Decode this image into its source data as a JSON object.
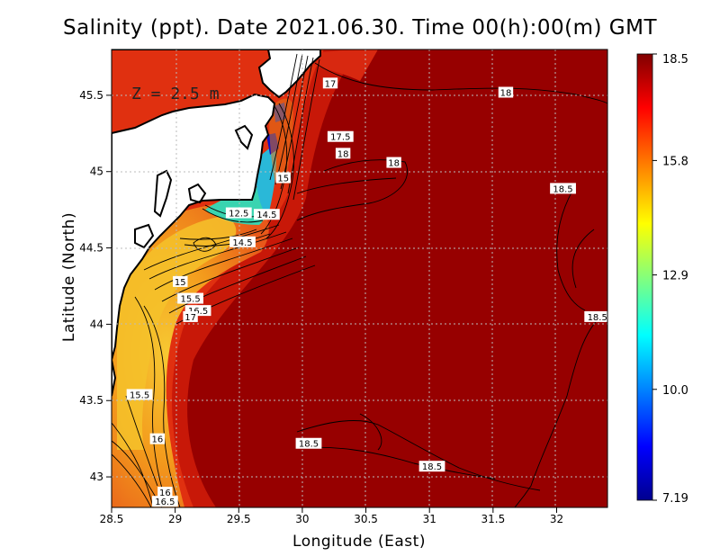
{
  "title": "Salinity (ppt). Date 2021.06.30. Time 00(h):00(m) GMT",
  "depth_label": "Z = 2.5 m",
  "chart_data": {
    "type": "heatmap",
    "variable": "Salinity",
    "units": "ppt",
    "xlabel": "Longitude (East)",
    "ylabel": "Latitude (North)",
    "xlim": [
      28.5,
      32.4
    ],
    "ylim": [
      42.8,
      45.8
    ],
    "x_ticks": [
      "28.5",
      "29",
      "29.5",
      "30",
      "30.5",
      "31",
      "31.5",
      "32"
    ],
    "y_ticks": [
      "43",
      "43.5",
      "44",
      "44.5",
      "45",
      "45.5"
    ],
    "grid": true,
    "colorbar": {
      "min": 7.19,
      "max": 18.5,
      "tick_labels": [
        "18.5",
        "15.8",
        "12.9",
        "10.0",
        "7.19"
      ],
      "colors": [
        "#00008f",
        "#0000ff",
        "#00ffff",
        "#ffff00",
        "#ff8000",
        "#ff0000",
        "#800000"
      ]
    },
    "contour_labels": [
      {
        "text": "17",
        "lon": 30.22,
        "lat": 45.58
      },
      {
        "text": "18",
        "lon": 31.6,
        "lat": 45.52
      },
      {
        "text": "17.5",
        "lon": 30.3,
        "lat": 45.23
      },
      {
        "text": "18",
        "lon": 30.32,
        "lat": 45.12
      },
      {
        "text": "18",
        "lon": 30.72,
        "lat": 45.06
      },
      {
        "text": "15",
        "lon": 29.85,
        "lat": 44.96
      },
      {
        "text": "18.5",
        "lon": 32.05,
        "lat": 44.89
      },
      {
        "text": "12.5",
        "lon": 29.5,
        "lat": 44.73
      },
      {
        "text": "14.5",
        "lon": 29.72,
        "lat": 44.72
      },
      {
        "text": "14.5",
        "lon": 29.53,
        "lat": 44.54
      },
      {
        "text": "15",
        "lon": 29.04,
        "lat": 44.28
      },
      {
        "text": "15.5",
        "lon": 29.12,
        "lat": 44.17
      },
      {
        "text": "16.5",
        "lon": 29.18,
        "lat": 44.09
      },
      {
        "text": "17",
        "lon": 29.12,
        "lat": 44.05
      },
      {
        "text": "18.5",
        "lon": 32.32,
        "lat": 44.05
      },
      {
        "text": "15.5",
        "lon": 28.72,
        "lat": 43.54
      },
      {
        "text": "16",
        "lon": 28.86,
        "lat": 43.25
      },
      {
        "text": "18.5",
        "lon": 30.05,
        "lat": 43.22
      },
      {
        "text": "18.5",
        "lon": 31.02,
        "lat": 43.07
      },
      {
        "text": "16",
        "lon": 28.92,
        "lat": 42.9
      },
      {
        "text": "16.5",
        "lon": 28.92,
        "lat": 42.84
      }
    ]
  }
}
